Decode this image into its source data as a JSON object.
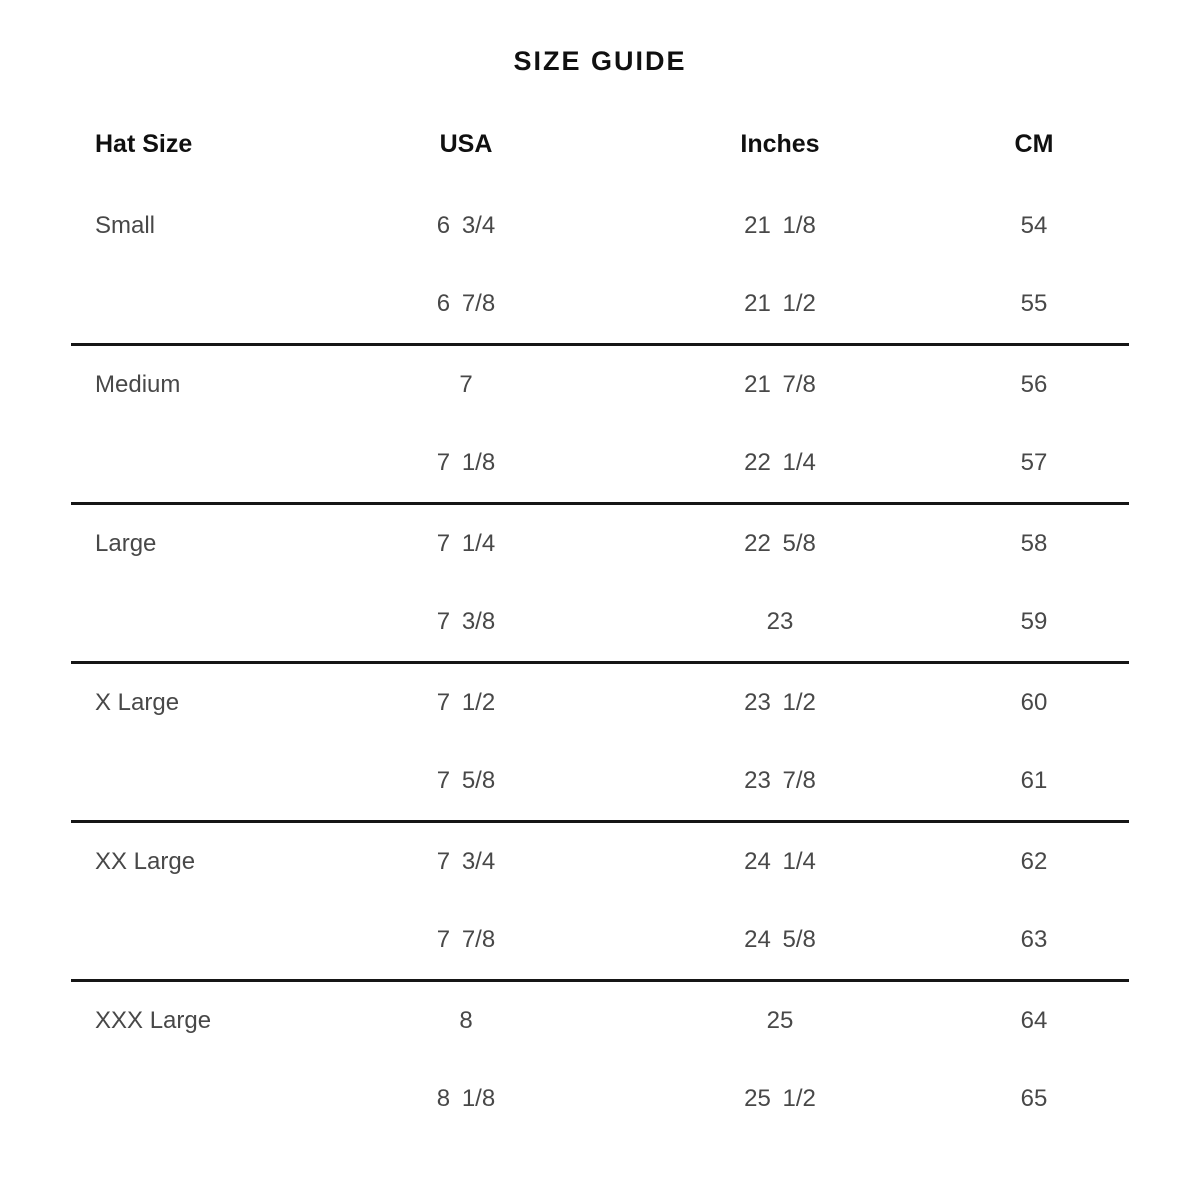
{
  "chart_data": {
    "type": "table",
    "title": "SIZE GUIDE",
    "columns": [
      "Hat Size",
      "USA",
      "Inches",
      "CM"
    ],
    "groups": [
      {
        "label": "Small",
        "rows": [
          [
            "Small",
            "6 3/4",
            "21 1/8",
            "54"
          ],
          [
            "",
            "6 7/8",
            "21 1/2",
            "55"
          ]
        ]
      },
      {
        "label": "Medium",
        "rows": [
          [
            "Medium",
            "7",
            "21 7/8",
            "56"
          ],
          [
            "",
            "7 1/8",
            "22 1/4",
            "57"
          ]
        ]
      },
      {
        "label": "Large",
        "rows": [
          [
            "Large",
            "7 1/4",
            "22 5/8",
            "58"
          ],
          [
            "",
            "7 3/8",
            "23",
            "59"
          ]
        ]
      },
      {
        "label": "X Large",
        "rows": [
          [
            "X Large",
            "7 1/2",
            "23 1/2",
            "60"
          ],
          [
            "",
            "7 5/8",
            "23 7/8",
            "61"
          ]
        ]
      },
      {
        "label": "XX Large",
        "rows": [
          [
            "XX Large",
            "7 3/4",
            "24 1/4",
            "62"
          ],
          [
            "",
            "7 7/8",
            "24 5/8",
            "63"
          ]
        ]
      },
      {
        "label": "XXX Large",
        "rows": [
          [
            "XXX Large",
            "8",
            "25",
            "64"
          ],
          [
            "",
            "8 1/8",
            "25 1/2",
            "65"
          ]
        ]
      }
    ],
    "layout": {
      "divider_color": "#161616",
      "heading_color": "#101010",
      "text_color": "#484848",
      "background": "#ffffff"
    }
  }
}
